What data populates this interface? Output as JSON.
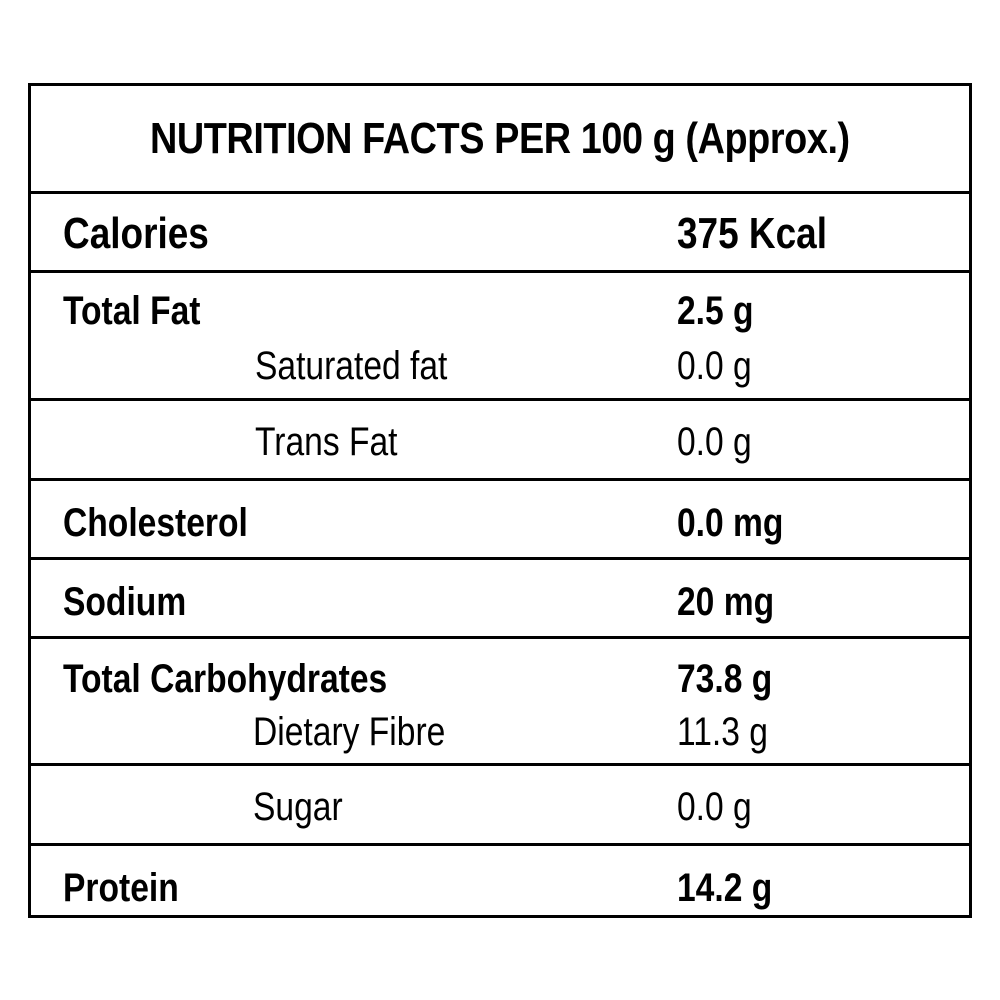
{
  "title": "NUTRITION FACTS PER 100 g (Approx.)",
  "rows": [
    {
      "name": "Calories",
      "value": "375 Kcal"
    },
    {
      "name": "Total Fat",
      "value": "2.5 g"
    },
    {
      "name": "Saturated fat",
      "value": "0.0 g"
    },
    {
      "name": "Trans Fat",
      "value": "0.0 g"
    },
    {
      "name": "Cholesterol",
      "value": "0.0 mg"
    },
    {
      "name": "Sodium",
      "value": "20 mg"
    },
    {
      "name": "Total Carbohydrates",
      "value": "73.8 g"
    },
    {
      "name": "Dietary Fibre",
      "value": "11.3 g"
    },
    {
      "name": "Sugar",
      "value": "0.0 g"
    },
    {
      "name": "Protein",
      "value": "14.2 g"
    }
  ]
}
